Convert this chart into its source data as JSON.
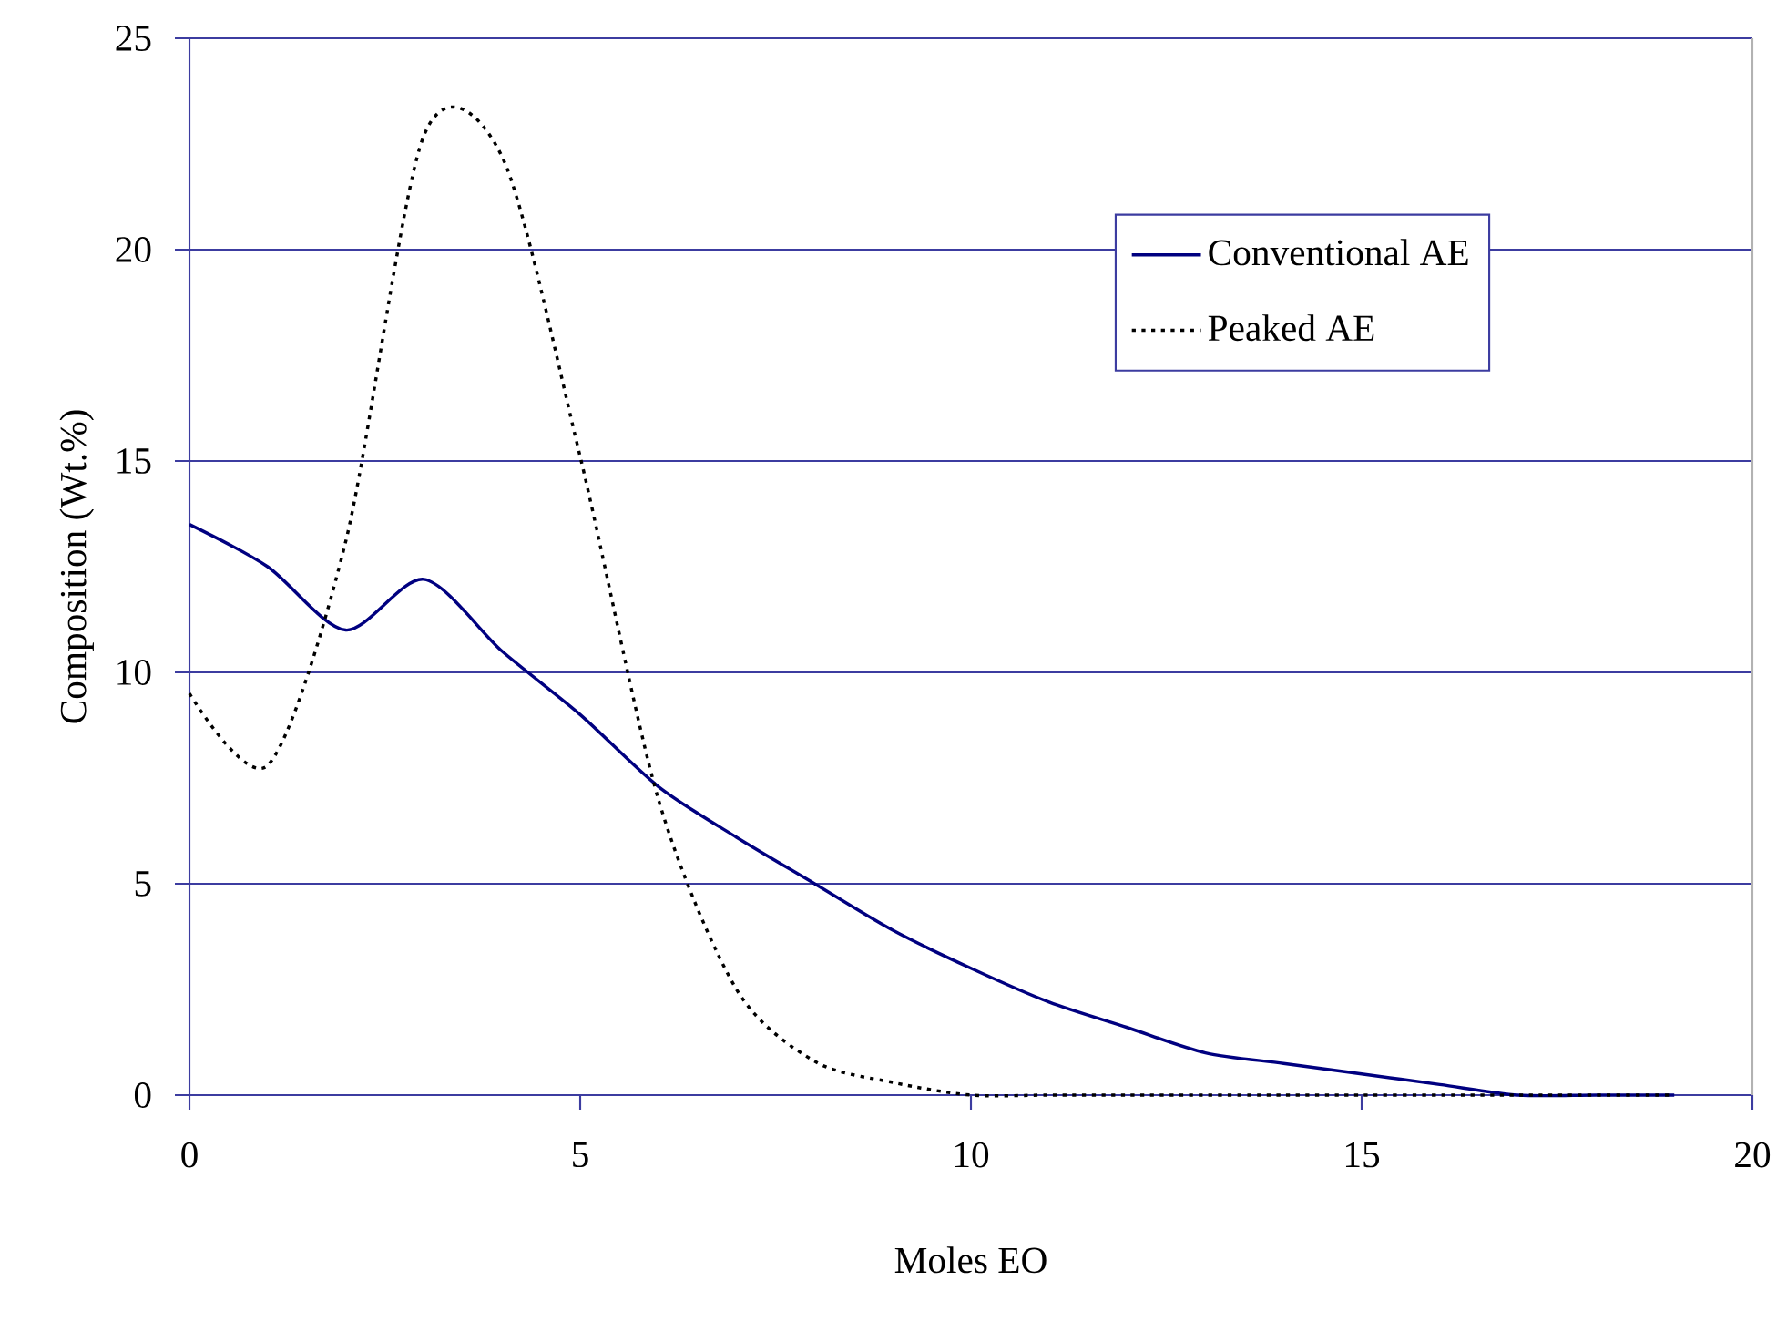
{
  "chart_data": {
    "type": "line",
    "xlabel": "Moles EO",
    "ylabel": "Composition (Wt.%)",
    "x": [
      0,
      1,
      2,
      3,
      4,
      5,
      6,
      7,
      8,
      9,
      10,
      11,
      12,
      13,
      14,
      15,
      16,
      17,
      18,
      19
    ],
    "series": [
      {
        "name": "Conventional AE",
        "color": "#000080",
        "line_style": "solid",
        "values": [
          13.5,
          12.5,
          11.0,
          12.2,
          10.5,
          9.0,
          7.3,
          6.1,
          5.0,
          3.9,
          3.0,
          2.2,
          1.6,
          1.0,
          0.75,
          0.5,
          0.25,
          0,
          0,
          0
        ]
      },
      {
        "name": "Peaked AE",
        "color": "#000000",
        "line_style": "dotted",
        "values": [
          9.5,
          7.8,
          13.1,
          22.7,
          22.2,
          15.1,
          7.0,
          2.5,
          0.8,
          0.3,
          0,
          0,
          0,
          0,
          0,
          0,
          0,
          0,
          0,
          0
        ]
      }
    ],
    "xlim": [
      0,
      20
    ],
    "xticks": [
      0,
      5,
      10,
      15,
      20
    ],
    "ylim": [
      0,
      25
    ],
    "yticks": [
      0,
      5,
      10,
      15,
      20,
      25
    ],
    "grid": "y",
    "legend": "top right",
    "marker": "none"
  }
}
